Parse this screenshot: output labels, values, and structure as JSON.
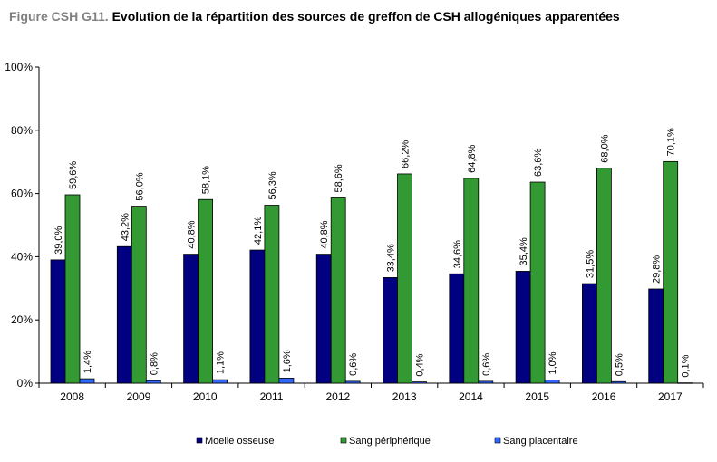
{
  "figure": {
    "title_prefix": "Figure CSH G11.",
    "title_text": " Evolution de la répartition des sources de greffon de CSH allogéniques apparentées"
  },
  "chart_data": {
    "type": "bar",
    "title": "Figure CSH G11. Evolution de la répartition des sources de greffon de CSH allogéniques apparentées",
    "xlabel": "",
    "ylabel": "",
    "categories": [
      "2008",
      "2009",
      "2010",
      "2011",
      "2012",
      "2013",
      "2014",
      "2015",
      "2016",
      "2017"
    ],
    "series": [
      {
        "name": "Moelle osseuse",
        "color": "#000080",
        "values": [
          39.0,
          43.2,
          40.8,
          42.1,
          40.8,
          33.4,
          34.6,
          35.4,
          31.5,
          29.8
        ],
        "labels": [
          "39,0%",
          "43,2%",
          "40,8%",
          "42,1%",
          "40,8%",
          "33,4%",
          "34,6%",
          "35,4%",
          "31,5%",
          "29,8%"
        ]
      },
      {
        "name": "Sang périphérique",
        "color": "#339933",
        "values": [
          59.6,
          56.0,
          58.1,
          56.3,
          58.6,
          66.2,
          64.8,
          63.6,
          68.0,
          70.1
        ],
        "labels": [
          "59,6%",
          "56,0%",
          "58,1%",
          "56,3%",
          "58,6%",
          "66,2%",
          "64,8%",
          "63,6%",
          "68,0%",
          "70,1%"
        ]
      },
      {
        "name": "Sang placentaire",
        "color": "#3366FF",
        "values": [
          1.4,
          0.8,
          1.1,
          1.6,
          0.6,
          0.4,
          0.6,
          1.0,
          0.5,
          0.1
        ],
        "labels": [
          "1,4%",
          "0,8%",
          "1,1%",
          "1,6%",
          "0,6%",
          "0,4%",
          "0,6%",
          "1,0%",
          "0,5%",
          "0,1%"
        ]
      }
    ],
    "ylim": [
      0,
      100
    ],
    "yticks": [
      0,
      20,
      40,
      60,
      80,
      100
    ],
    "ytick_labels": [
      "0%",
      "20%",
      "40%",
      "60%",
      "80%",
      "100%"
    ],
    "grid": false,
    "legend_position": "bottom"
  }
}
